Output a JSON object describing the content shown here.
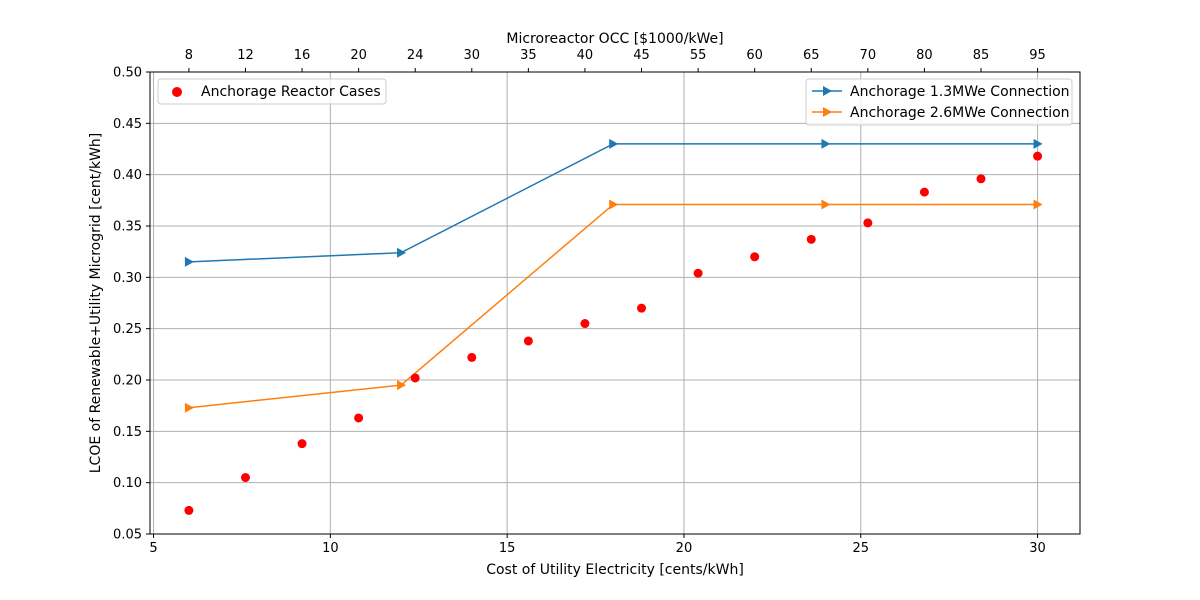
{
  "chart_data": {
    "type": "line",
    "xlabel": "Cost of Utility Electricity [cents/kWh]",
    "ylabel": "LCOE of Renewable+Utility Microgrid [cent/kWh]",
    "top_xlabel": "Microreactor OCC [$1000/kWe]",
    "xlim": [
      4.9,
      31.2
    ],
    "ylim": [
      0.05,
      0.5
    ],
    "x_ticks": [
      5,
      10,
      15,
      20,
      25,
      30
    ],
    "y_ticks": [
      "0.05",
      "0.10",
      "0.15",
      "0.20",
      "0.25",
      "0.30",
      "0.35",
      "0.40",
      "0.45",
      "0.50"
    ],
    "top_ticks": [
      {
        "x": 6.0,
        "label": "8"
      },
      {
        "x": 7.6,
        "label": "12"
      },
      {
        "x": 9.2,
        "label": "16"
      },
      {
        "x": 10.8,
        "label": "20"
      },
      {
        "x": 12.4,
        "label": "24"
      },
      {
        "x": 14.0,
        "label": "30"
      },
      {
        "x": 15.6,
        "label": "35"
      },
      {
        "x": 17.2,
        "label": "40"
      },
      {
        "x": 18.8,
        "label": "45"
      },
      {
        "x": 20.4,
        "label": "55"
      },
      {
        "x": 22.0,
        "label": "60"
      },
      {
        "x": 23.6,
        "label": "65"
      },
      {
        "x": 25.2,
        "label": "70"
      },
      {
        "x": 26.8,
        "label": "80"
      },
      {
        "x": 28.4,
        "label": "85"
      },
      {
        "x": 30.0,
        "label": "95"
      }
    ],
    "grid": true,
    "series": [
      {
        "name": "Anchorage 1.3MWe Connection",
        "color": "#1f77b4",
        "marker": "triangle-right",
        "x": [
          6,
          12,
          18,
          24,
          30
        ],
        "y": [
          0.315,
          0.324,
          0.43,
          0.43,
          0.43
        ]
      },
      {
        "name": "Anchorage 2.6MWe Connection",
        "color": "#ff7f0e",
        "marker": "triangle-right",
        "x": [
          6,
          12,
          18,
          24,
          30
        ],
        "y": [
          0.173,
          0.195,
          0.371,
          0.371,
          0.371
        ]
      }
    ],
    "scatter": {
      "name": "Anchorage Reactor Cases",
      "color": "#ff0000",
      "x": [
        6.0,
        7.6,
        9.2,
        10.8,
        12.4,
        14.0,
        15.6,
        17.2,
        18.8,
        20.4,
        22.0,
        23.6,
        25.2,
        26.8,
        28.4,
        30.0
      ],
      "y": [
        0.073,
        0.105,
        0.138,
        0.163,
        0.202,
        0.222,
        0.238,
        0.255,
        0.27,
        0.304,
        0.32,
        0.337,
        0.353,
        0.383,
        0.396,
        0.418
      ]
    },
    "legend_scatter_position": "upper-left",
    "legend_lines_position": "upper-right"
  }
}
